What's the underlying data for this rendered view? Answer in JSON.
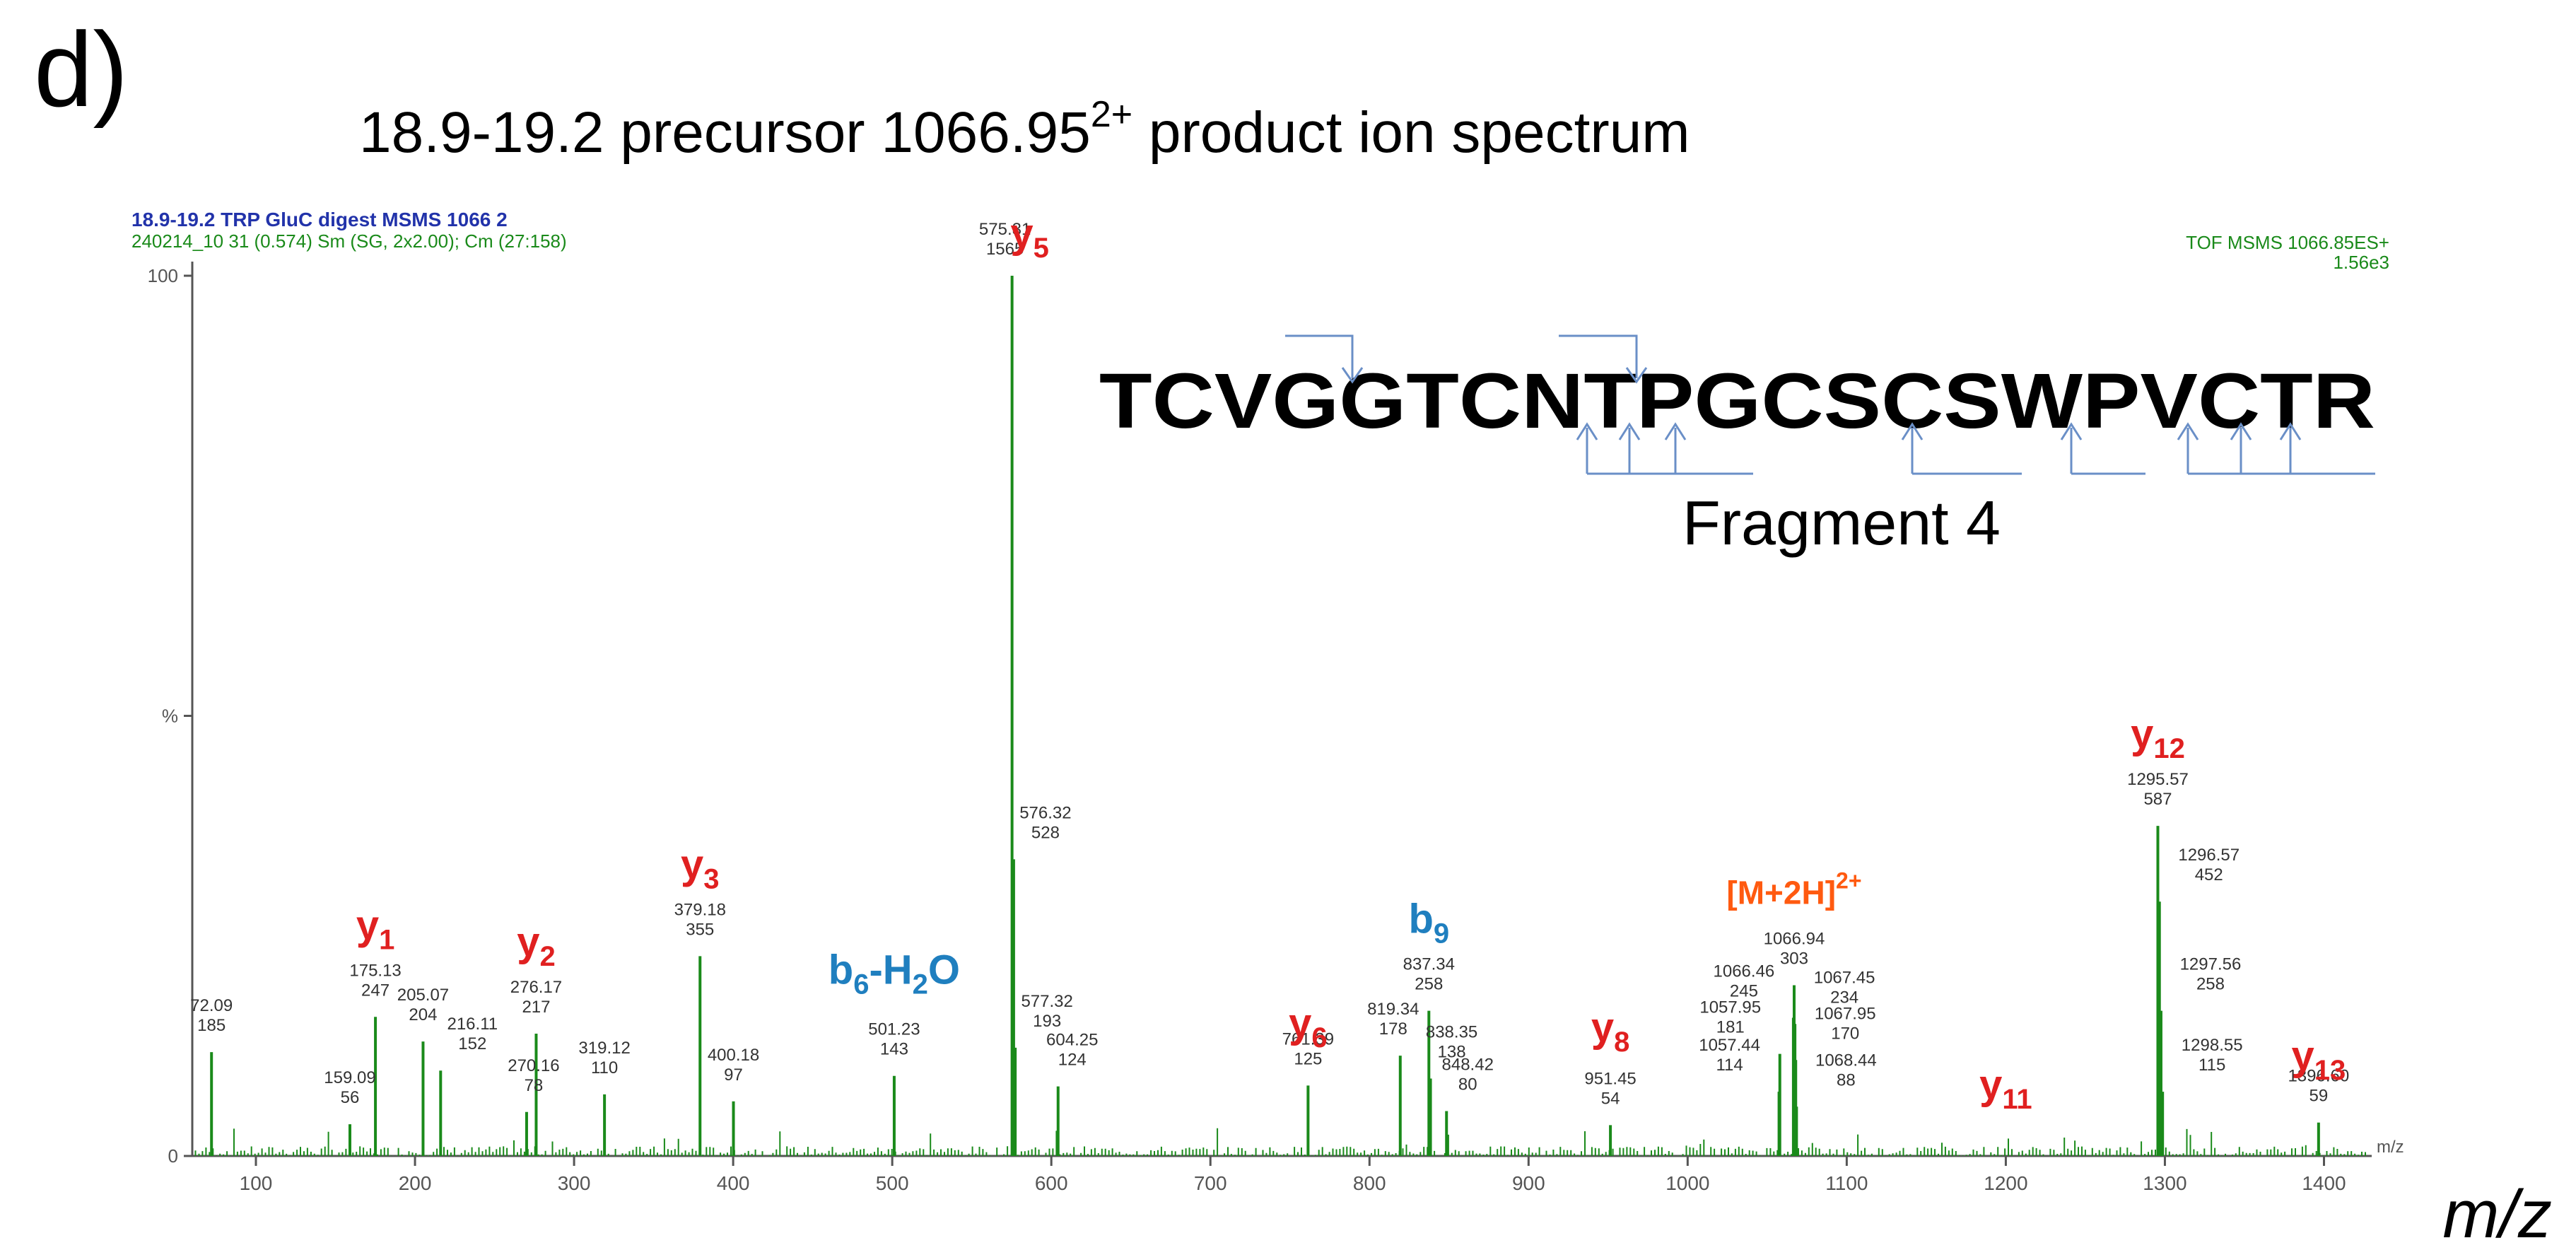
{
  "panel_label": "d)",
  "title_main": "18.9-19.2 precursor 1066.95",
  "title_sup": "2+",
  "title_tail": " product ion spectrum",
  "instrument": {
    "line1": "18.9-19.2 TRP GluC digest MSMS 1066 2",
    "line2": "240214_10 31 (0.574) Sm (SG, 2x2.00); Cm (27:158)",
    "right1": "TOF MSMS 1066.85ES+",
    "right2": "1.56e3"
  },
  "sequence": {
    "text": "TCVGGTCNTPGCSCSWPVCTR",
    "fragment_label": "Fragment 4"
  },
  "xlabel_corner": "m/z",
  "xlabel_main": "m/z",
  "colors": {
    "spectrum": "#1a8a1a",
    "y_ion": "#e02020",
    "b_ion": "#1f7fbf",
    "mh": "#ff5a10",
    "seq_arrows": "#6a8fc7"
  },
  "chart_data": {
    "type": "bar",
    "xlim": [
      60,
      1430
    ],
    "ylim": [
      0,
      100
    ],
    "y_ticks": [
      {
        "value": 0,
        "label": "0"
      },
      {
        "value": 50,
        "label": "%"
      },
      {
        "value": 100,
        "label": "100"
      }
    ],
    "x_ticks": [
      100,
      200,
      300,
      400,
      500,
      600,
      700,
      800,
      900,
      1000,
      1100,
      1200,
      1300,
      1400
    ],
    "peaks": [
      {
        "mz": "72.09",
        "int": "185",
        "x": 72.09,
        "y": 11.8
      },
      {
        "mz": "159.09",
        "int": "56",
        "x": 159.09,
        "y": 3.6
      },
      {
        "mz": "175.13",
        "int": "247",
        "x": 175.13,
        "y": 15.8
      },
      {
        "mz": "205.07",
        "int": "204",
        "x": 205.07,
        "y": 13.0
      },
      {
        "mz": "216.11",
        "int": "152",
        "x": 216.11,
        "y": 9.7
      },
      {
        "mz": "270.16",
        "int": "78",
        "x": 270.16,
        "y": 5.0
      },
      {
        "mz": "276.17",
        "int": "217",
        "x": 276.17,
        "y": 13.9
      },
      {
        "mz": "319.12",
        "int": "110",
        "x": 319.12,
        "y": 7.0
      },
      {
        "mz": "379.18",
        "int": "355",
        "x": 379.18,
        "y": 22.7
      },
      {
        "mz": "400.18",
        "int": "97",
        "x": 400.18,
        "y": 6.2
      },
      {
        "mz": "501.23",
        "int": "143",
        "x": 501.23,
        "y": 9.1
      },
      {
        "mz": "575.31",
        "int": "1565",
        "x": 575.31,
        "y": 100
      },
      {
        "mz": "576.32",
        "int": "528",
        "x": 576.32,
        "y": 33.7
      },
      {
        "mz": "577.32",
        "int": "193",
        "x": 577.32,
        "y": 12.3
      },
      {
        "mz": "604.25",
        "int": "124",
        "x": 604.25,
        "y": 7.9
      },
      {
        "mz": "761.39",
        "int": "125",
        "x": 761.39,
        "y": 8.0
      },
      {
        "mz": "819.34",
        "int": "178",
        "x": 819.34,
        "y": 11.4
      },
      {
        "mz": "837.34",
        "int": "258",
        "x": 837.34,
        "y": 16.5
      },
      {
        "mz": "838.35",
        "int": "138",
        "x": 838.35,
        "y": 8.8
      },
      {
        "mz": "848.42",
        "int": "80",
        "x": 848.42,
        "y": 5.1
      },
      {
        "mz": "951.45",
        "int": "54",
        "x": 951.45,
        "y": 3.5
      },
      {
        "mz": "1057.44",
        "int": "114",
        "x": 1057.44,
        "y": 7.3
      },
      {
        "mz": "1057.95",
        "int": "181",
        "x": 1057.95,
        "y": 11.6
      },
      {
        "mz": "1066.46",
        "int": "245",
        "x": 1066.46,
        "y": 15.7
      },
      {
        "mz": "1066.94",
        "int": "303",
        "x": 1066.94,
        "y": 19.4
      },
      {
        "mz": "1067.45",
        "int": "234",
        "x": 1067.45,
        "y": 15.0
      },
      {
        "mz": "1067.95",
        "int": "170",
        "x": 1067.95,
        "y": 10.9
      },
      {
        "mz": "1068.44",
        "int": "88",
        "x": 1068.44,
        "y": 5.6
      },
      {
        "mz": "1295.57",
        "int": "587",
        "x": 1295.57,
        "y": 37.5
      },
      {
        "mz": "1296.57",
        "int": "452",
        "x": 1296.57,
        "y": 28.9
      },
      {
        "mz": "1297.56",
        "int": "258",
        "x": 1297.56,
        "y": 16.5
      },
      {
        "mz": "1298.55",
        "int": "115",
        "x": 1298.55,
        "y": 7.3
      },
      {
        "mz": "1396.60",
        "int": "59",
        "x": 1396.6,
        "y": 3.8
      }
    ],
    "ion_annotations": [
      {
        "label": "y",
        "sub": "1",
        "sup": "",
        "type": "y",
        "mz": 175.13
      },
      {
        "label": "y",
        "sub": "2",
        "sup": "",
        "type": "y",
        "mz": 276.17
      },
      {
        "label": "y",
        "sub": "3",
        "sup": "",
        "type": "y",
        "mz": 379.18
      },
      {
        "label": "y",
        "sub": "5",
        "sup": "",
        "type": "y",
        "mz": 575.31
      },
      {
        "label": "y",
        "sub": "6",
        "sup": "",
        "type": "y",
        "mz": 761.39
      },
      {
        "label": "y",
        "sub": "8",
        "sup": "",
        "type": "y",
        "mz": 951.45
      },
      {
        "label": "y",
        "sub": "11",
        "sup": "",
        "type": "y",
        "mz": 1200
      },
      {
        "label": "y",
        "sub": "12",
        "sup": "",
        "type": "y",
        "mz": 1295.57
      },
      {
        "label": "y",
        "sub": "13",
        "sup": "",
        "type": "y",
        "mz": 1396.6
      },
      {
        "label": "b",
        "sub": "6",
        "sup": "",
        "type": "b",
        "mz": 501.23,
        "suffix": "-H",
        "suffix_sub": "2",
        "suffix_tail": "O"
      },
      {
        "label": "b",
        "sub": "9",
        "sup": "",
        "type": "b",
        "mz": 837.34
      },
      {
        "label": "[M+2H]",
        "sub": "",
        "sup": "2+",
        "type": "mh",
        "mz": 1066.94
      }
    ]
  }
}
